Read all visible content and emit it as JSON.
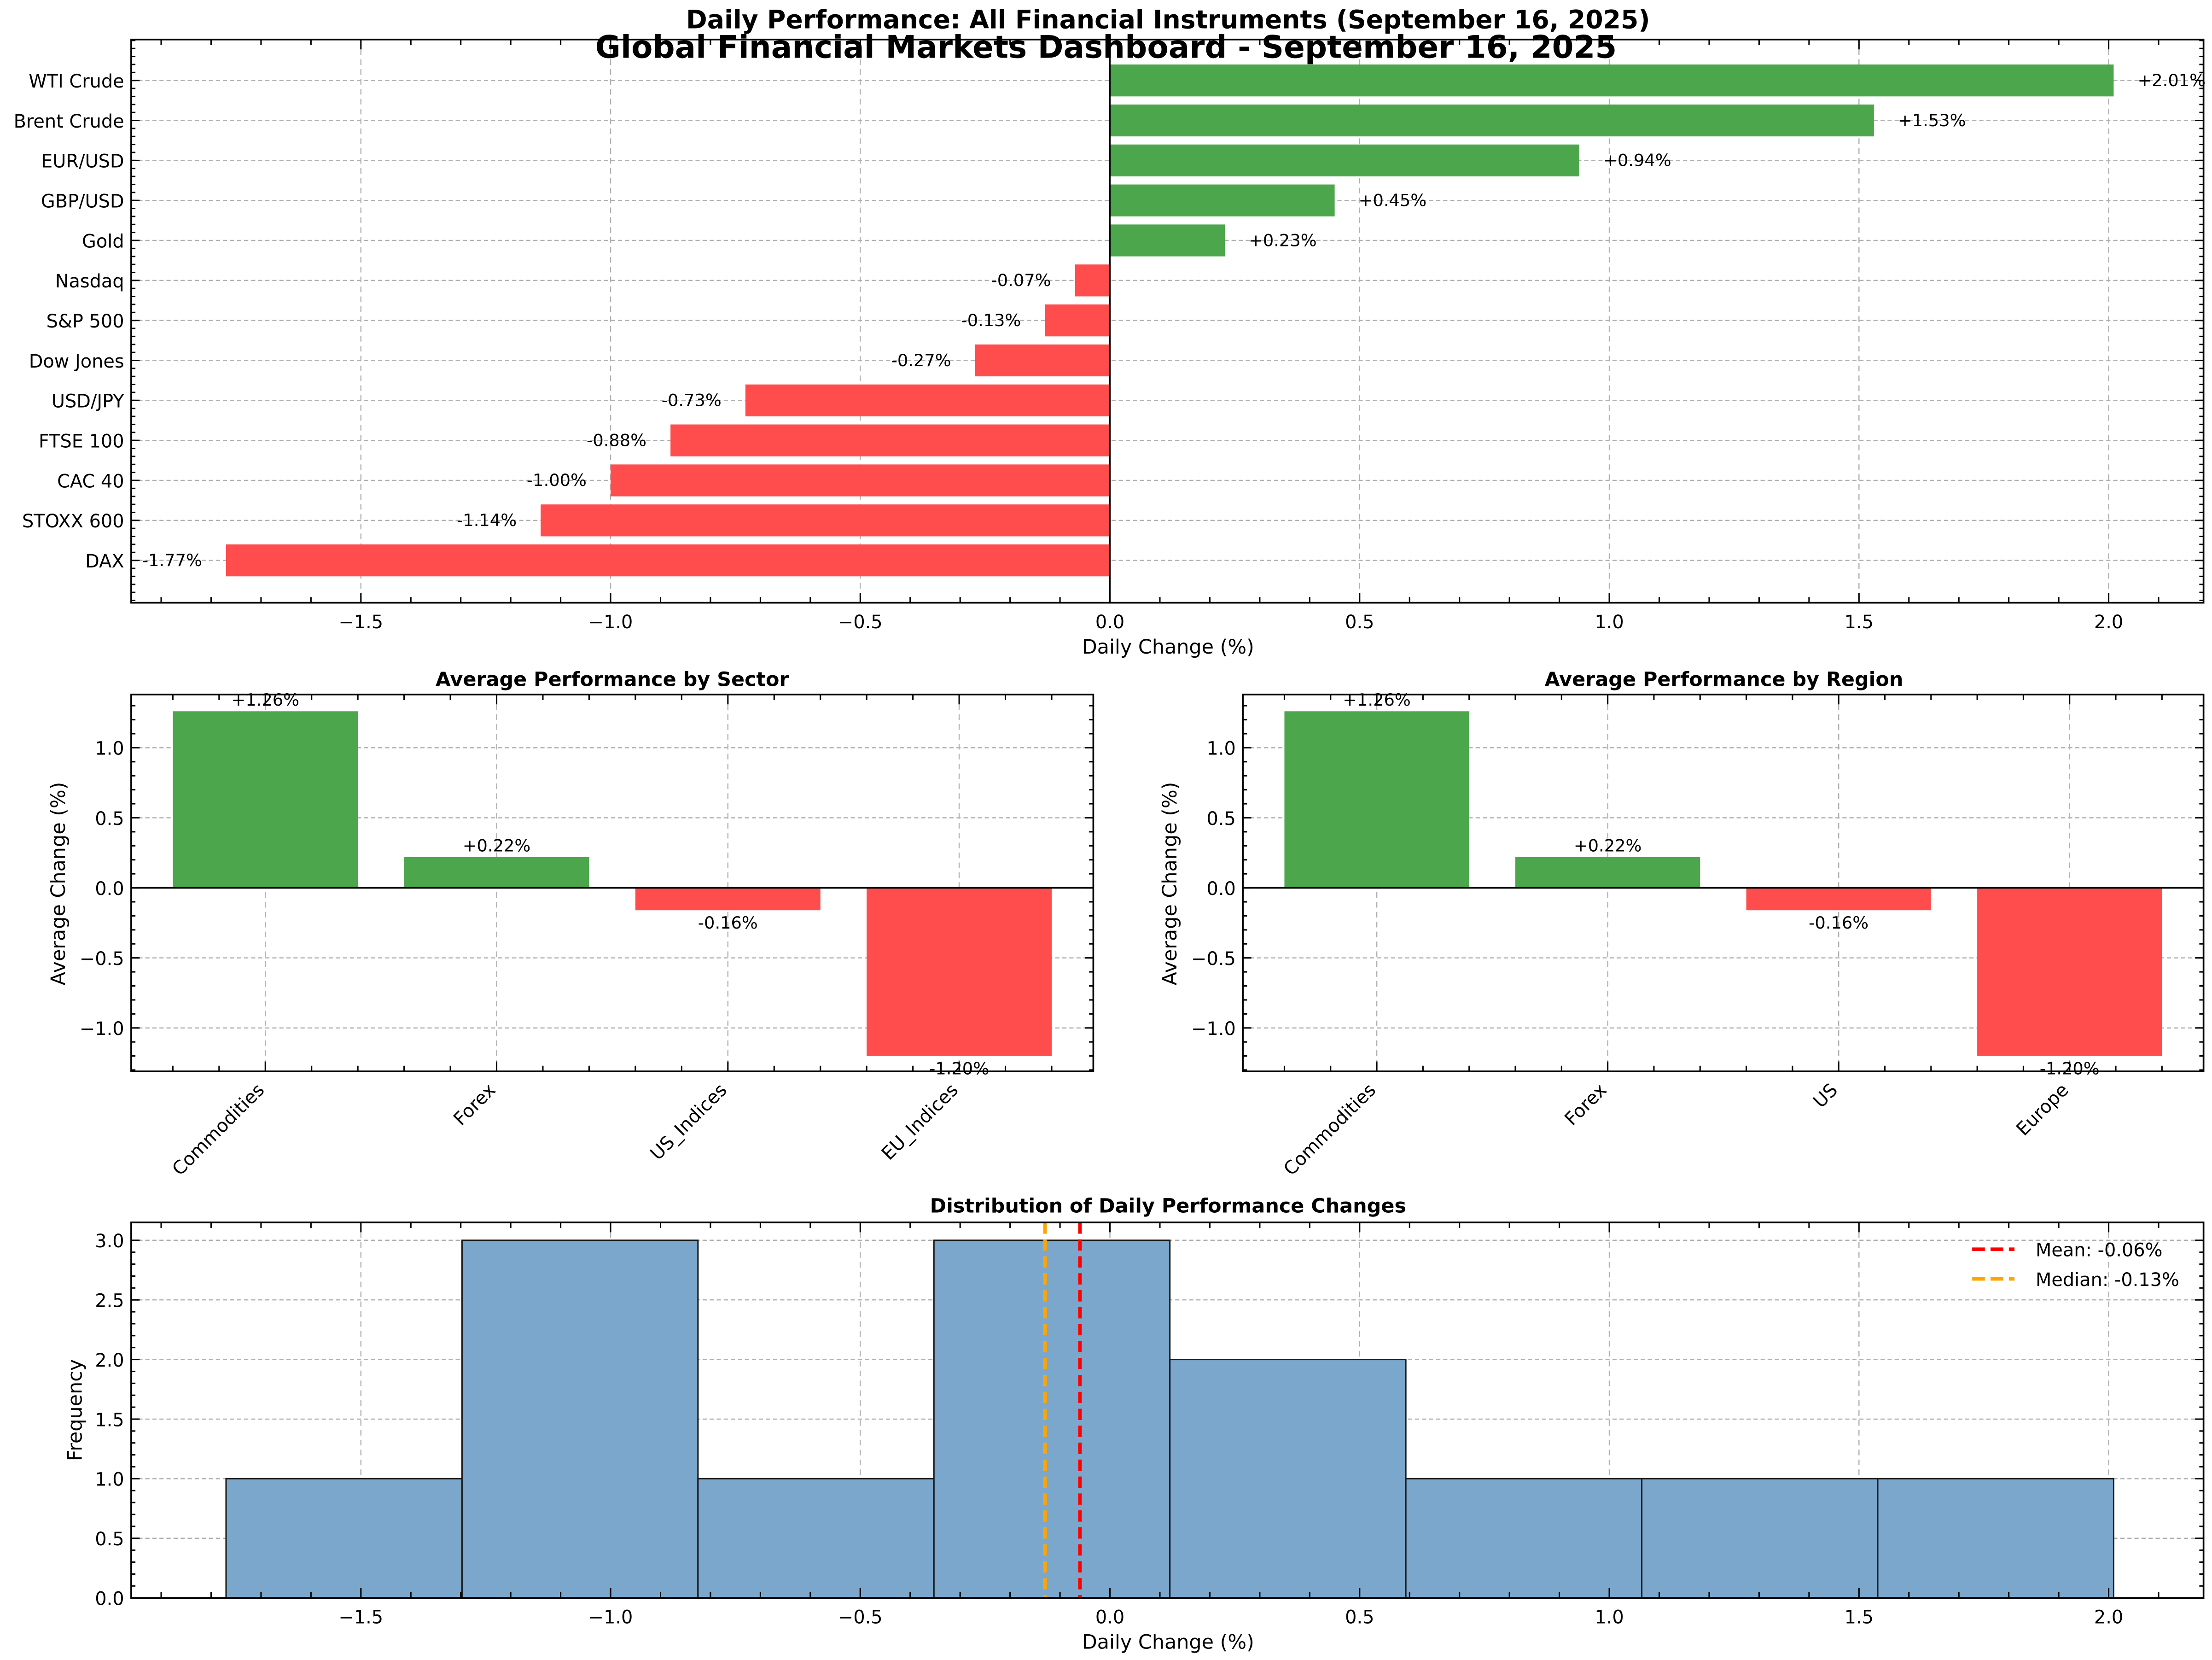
{
  "figure": {
    "suptitle": "Global Financial Markets Dashboard - September 16, 2025"
  },
  "chart_data": [
    {
      "id": "instruments",
      "type": "bar",
      "orientation": "horizontal",
      "title": "Daily Performance: All Financial Instruments (September 16, 2025)",
      "xlabel": "Daily Change (%)",
      "ylabel": "",
      "xlim": [
        -1.96,
        2.19
      ],
      "xticks": [
        -1.5,
        -1.0,
        -0.5,
        0.0,
        0.5,
        1.0,
        1.5,
        2.0
      ],
      "xtick_labels": [
        "−1.5",
        "−1.0",
        "−0.5",
        "0.0",
        "0.5",
        "1.0",
        "1.5",
        "2.0"
      ],
      "grid": true,
      "colors": {
        "positive": "#4ca64c",
        "negative": "#ff4d4d"
      },
      "categories": [
        "WTI Crude",
        "Brent Crude",
        "EUR/USD",
        "GBP/USD",
        "Gold",
        "Nasdaq",
        "S&P 500",
        "Dow Jones",
        "USD/JPY",
        "FTSE 100",
        "CAC 40",
        "STOXX 600",
        "DAX"
      ],
      "values": [
        2.01,
        1.53,
        0.94,
        0.45,
        0.23,
        -0.07,
        -0.13,
        -0.27,
        -0.73,
        -0.88,
        -1.0,
        -1.14,
        -1.77
      ],
      "data_labels": [
        "+2.01%",
        "+1.53%",
        "+0.94%",
        "+0.45%",
        "+0.23%",
        "-0.07%",
        "-0.13%",
        "-0.27%",
        "-0.73%",
        "-0.88%",
        "-1.00%",
        "-1.14%",
        "-1.77%"
      ]
    },
    {
      "id": "sector",
      "type": "bar",
      "title": "Average Performance by Sector",
      "xlabel": "",
      "ylabel": "Average Change (%)",
      "ylim": [
        -1.31,
        1.38
      ],
      "yticks": [
        -1.0,
        -0.5,
        0.0,
        0.5,
        1.0
      ],
      "ytick_labels": [
        "−1.0",
        "−0.5",
        "0.0",
        "0.5",
        "1.0"
      ],
      "grid": true,
      "categories": [
        "Commodities",
        "Forex",
        "US_Indices",
        "EU_Indices"
      ],
      "values": [
        1.26,
        0.22,
        -0.16,
        -1.2
      ],
      "data_labels": [
        "+1.26%",
        "+0.22%",
        "-0.16%",
        "-1.20%"
      ]
    },
    {
      "id": "region",
      "type": "bar",
      "title": "Average Performance by Region",
      "xlabel": "",
      "ylabel": "Average Change (%)",
      "ylim": [
        -1.31,
        1.38
      ],
      "yticks": [
        -1.0,
        -0.5,
        0.0,
        0.5,
        1.0
      ],
      "ytick_labels": [
        "−1.0",
        "−0.5",
        "0.0",
        "0.5",
        "1.0"
      ],
      "grid": true,
      "categories": [
        "Commodities",
        "Forex",
        "US",
        "Europe"
      ],
      "values": [
        1.26,
        0.22,
        -0.16,
        -1.2
      ],
      "data_labels": [
        "+1.26%",
        "+0.22%",
        "-0.16%",
        "-1.20%"
      ]
    },
    {
      "id": "distribution",
      "type": "histogram",
      "title": "Distribution of Daily Performance Changes",
      "xlabel": "Daily Change (%)",
      "ylabel": "Frequency",
      "xlim": [
        -1.96,
        2.19
      ],
      "ylim": [
        0,
        3.15
      ],
      "xticks": [
        -1.5,
        -1.0,
        -0.5,
        0.0,
        0.5,
        1.0,
        1.5,
        2.0
      ],
      "xtick_labels": [
        "−1.5",
        "−1.0",
        "−0.5",
        "0.0",
        "0.5",
        "1.0",
        "1.5",
        "2.0"
      ],
      "yticks": [
        0.0,
        0.5,
        1.0,
        1.5,
        2.0,
        2.5,
        3.0
      ],
      "ytick_labels": [
        "0.0",
        "0.5",
        "1.0",
        "1.5",
        "2.0",
        "2.5",
        "3.0"
      ],
      "grid": true,
      "bar_color": "#7ba7cc",
      "bin_edges": [
        -1.77,
        -1.2975,
        -0.825,
        -0.3525,
        0.12,
        0.5925,
        1.065,
        1.5375,
        2.01
      ],
      "counts": [
        1,
        3,
        1,
        3,
        2,
        1,
        1,
        1
      ],
      "lines": [
        {
          "name": "Mean",
          "value": -0.06,
          "label": "Mean: -0.06%",
          "color": "#ff0000"
        },
        {
          "name": "Median",
          "value": -0.13,
          "label": "Median: -0.13%",
          "color": "#ffa500"
        }
      ],
      "legend_position": "top-right"
    }
  ]
}
